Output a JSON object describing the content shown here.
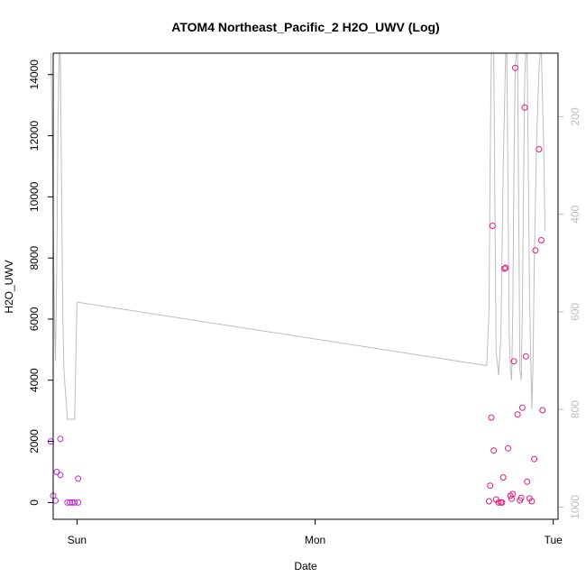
{
  "chart_data": {
    "type": "scatter",
    "title": "ATOM4 Northeast_Pacific_2 H2O_UWV (Log)",
    "xlabel": "Date",
    "ylabel": "H2O_UWV",
    "x_ticks": [
      "Sun",
      "Mon",
      "Tue"
    ],
    "y_ticks": [
      "0",
      "2000",
      "4000",
      "6000",
      "8000",
      "10000",
      "12000",
      "14000"
    ],
    "y2_ticks": [
      "200",
      "400",
      "600",
      "800",
      "1000"
    ],
    "xlim": [
      -0.1,
      2.02
    ],
    "ylim": [
      -550,
      14700
    ],
    "y2lim": [
      1025,
      70
    ],
    "y2_reversed": true,
    "colors": {
      "points": "#e8177d",
      "points_early": "#c42ad6",
      "line": "#bdbdbd"
    },
    "series": [
      {
        "kind": "scatter",
        "points": [
          {
            "x": -0.11,
            "y": 2000
          },
          {
            "x": -0.1,
            "y": 220
          },
          {
            "x": -0.09,
            "y": 60
          },
          {
            "x": -0.085,
            "y": 1000
          },
          {
            "x": -0.07,
            "y": 900
          },
          {
            "x": -0.07,
            "y": 2080
          },
          {
            "x": -0.04,
            "y": 0
          },
          {
            "x": -0.03,
            "y": 0
          },
          {
            "x": -0.02,
            "y": 0
          },
          {
            "x": -0.01,
            "y": 0
          },
          {
            "x": 0.005,
            "y": 0
          },
          {
            "x": 0.005,
            "y": 780
          },
          {
            "x": 1.73,
            "y": 40
          },
          {
            "x": 1.735,
            "y": 550
          },
          {
            "x": 1.74,
            "y": 2780
          },
          {
            "x": 1.745,
            "y": 9050
          },
          {
            "x": 1.75,
            "y": 1700
          },
          {
            "x": 1.76,
            "y": 100
          },
          {
            "x": 1.77,
            "y": 0
          },
          {
            "x": 1.78,
            "y": 0
          },
          {
            "x": 1.785,
            "y": 0
          },
          {
            "x": 1.79,
            "y": 820
          },
          {
            "x": 1.795,
            "y": 7650
          },
          {
            "x": 1.8,
            "y": 7680
          },
          {
            "x": 1.81,
            "y": 1770
          },
          {
            "x": 1.82,
            "y": 220
          },
          {
            "x": 1.825,
            "y": 120
          },
          {
            "x": 1.83,
            "y": 280
          },
          {
            "x": 1.835,
            "y": 4620
          },
          {
            "x": 1.84,
            "y": 14220
          },
          {
            "x": 1.85,
            "y": 2880
          },
          {
            "x": 1.86,
            "y": 70
          },
          {
            "x": 1.865,
            "y": 150
          },
          {
            "x": 1.87,
            "y": 3100
          },
          {
            "x": 1.88,
            "y": 12920
          },
          {
            "x": 1.885,
            "y": 4780
          },
          {
            "x": 1.89,
            "y": 680
          },
          {
            "x": 1.9,
            "y": 130
          },
          {
            "x": 1.91,
            "y": 40
          },
          {
            "x": 1.92,
            "y": 1420
          },
          {
            "x": 1.925,
            "y": 8250
          },
          {
            "x": 1.94,
            "y": 11560
          },
          {
            "x": 1.95,
            "y": 8580
          },
          {
            "x": 1.955,
            "y": 3020
          }
        ]
      },
      {
        "kind": "line",
        "axis": "right",
        "points": [
          {
            "x": -0.11,
            "y": 70
          },
          {
            "x": -0.105,
            "y": 200
          },
          {
            "x": -0.1,
            "y": 420
          },
          {
            "x": -0.095,
            "y": 600
          },
          {
            "x": -0.09,
            "y": 700
          },
          {
            "x": -0.085,
            "y": 500
          },
          {
            "x": -0.08,
            "y": 220
          },
          {
            "x": -0.075,
            "y": 70
          },
          {
            "x": -0.07,
            "y": 70
          },
          {
            "x": -0.065,
            "y": 330
          },
          {
            "x": -0.06,
            "y": 600
          },
          {
            "x": -0.055,
            "y": 720
          },
          {
            "x": -0.04,
            "y": 820
          },
          {
            "x": -0.02,
            "y": 820
          },
          {
            "x": -0.01,
            "y": 820
          },
          {
            "x": 0.0,
            "y": 580
          },
          {
            "x": 1.72,
            "y": 710
          },
          {
            "x": 1.73,
            "y": 600
          },
          {
            "x": 1.735,
            "y": 300
          },
          {
            "x": 1.74,
            "y": 70
          },
          {
            "x": 1.75,
            "y": 70
          },
          {
            "x": 1.755,
            "y": 400
          },
          {
            "x": 1.76,
            "y": 680
          },
          {
            "x": 1.77,
            "y": 730
          },
          {
            "x": 1.78,
            "y": 650
          },
          {
            "x": 1.79,
            "y": 300
          },
          {
            "x": 1.8,
            "y": 70
          },
          {
            "x": 1.805,
            "y": 70
          },
          {
            "x": 1.81,
            "y": 350
          },
          {
            "x": 1.815,
            "y": 640
          },
          {
            "x": 1.82,
            "y": 720
          },
          {
            "x": 1.825,
            "y": 740
          },
          {
            "x": 1.83,
            "y": 600
          },
          {
            "x": 1.835,
            "y": 300
          },
          {
            "x": 1.84,
            "y": 100
          },
          {
            "x": 1.845,
            "y": 70
          },
          {
            "x": 1.85,
            "y": 70
          },
          {
            "x": 1.855,
            "y": 400
          },
          {
            "x": 1.86,
            "y": 720
          },
          {
            "x": 1.865,
            "y": 740
          },
          {
            "x": 1.87,
            "y": 600
          },
          {
            "x": 1.875,
            "y": 350
          },
          {
            "x": 1.88,
            "y": 120
          },
          {
            "x": 1.885,
            "y": 70
          },
          {
            "x": 1.89,
            "y": 70
          },
          {
            "x": 1.895,
            "y": 300
          },
          {
            "x": 1.9,
            "y": 560
          },
          {
            "x": 1.91,
            "y": 800
          },
          {
            "x": 1.915,
            "y": 700
          },
          {
            "x": 1.92,
            "y": 500
          },
          {
            "x": 1.93,
            "y": 250
          },
          {
            "x": 1.94,
            "y": 100
          },
          {
            "x": 1.945,
            "y": 70
          },
          {
            "x": 1.95,
            "y": 70
          },
          {
            "x": 1.96,
            "y": 270
          },
          {
            "x": 1.965,
            "y": 435
          }
        ]
      }
    ]
  }
}
